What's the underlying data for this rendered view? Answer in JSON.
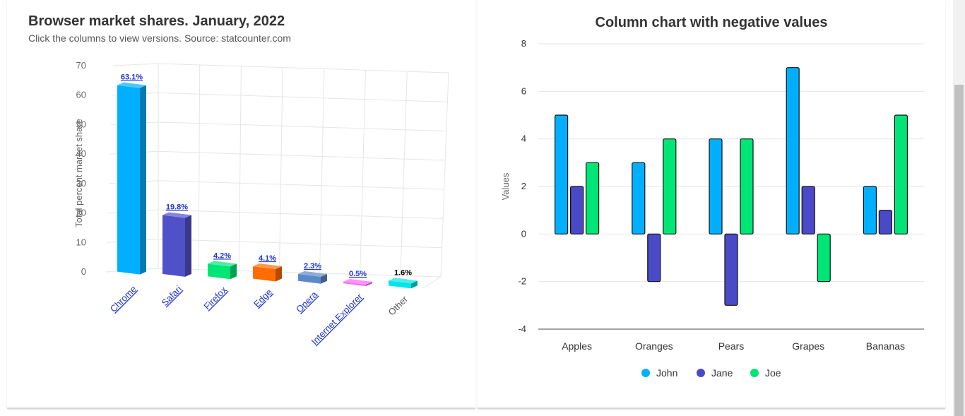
{
  "chart_data": [
    {
      "type": "bar",
      "title": "Browser market shares. January, 2022",
      "subtitle": "Click the columns to view versions. Source: statcounter.com",
      "ylabel": "Total percent market share",
      "ylim": [
        0,
        70
      ],
      "yticks": [
        "0",
        "10",
        "20",
        "30",
        "40",
        "50",
        "60",
        "70"
      ],
      "categories": [
        "Chrome",
        "Safari",
        "Firefox",
        "Edge",
        "Opera",
        "Internet Explorer",
        "Other"
      ],
      "values": [
        63.1,
        19.8,
        4.2,
        4.1,
        2.3,
        0.5,
        1.6
      ],
      "data_labels": [
        "63.1%",
        "19.8%",
        "4.2%",
        "4.1%",
        "2.3%",
        "0.5%",
        "1.6%"
      ],
      "linked": [
        true,
        true,
        true,
        true,
        true,
        true,
        false
      ],
      "colors": [
        "#00b0ff",
        "#5050c8",
        "#00e676",
        "#ff6d00",
        "#5c8ac8",
        "#ff66ff",
        "#00e5e5"
      ]
    },
    {
      "type": "bar",
      "title": "Column chart with negative values",
      "ylabel": "Values",
      "ylim": [
        -4,
        8
      ],
      "yticks": [
        "-4",
        "-2",
        "0",
        "2",
        "4",
        "6",
        "8"
      ],
      "categories": [
        "Apples",
        "Oranges",
        "Pears",
        "Grapes",
        "Bananas"
      ],
      "series": [
        {
          "name": "John",
          "values": [
            5,
            3,
            4,
            7,
            2
          ],
          "color": "#00b0ff"
        },
        {
          "name": "Jane",
          "values": [
            2,
            -2,
            -3,
            2,
            1
          ],
          "color": "#4a4ac8"
        },
        {
          "name": "Joe",
          "values": [
            3,
            4,
            4,
            -2,
            5
          ],
          "color": "#00e676"
        }
      ],
      "legend": "bottom-center"
    }
  ]
}
